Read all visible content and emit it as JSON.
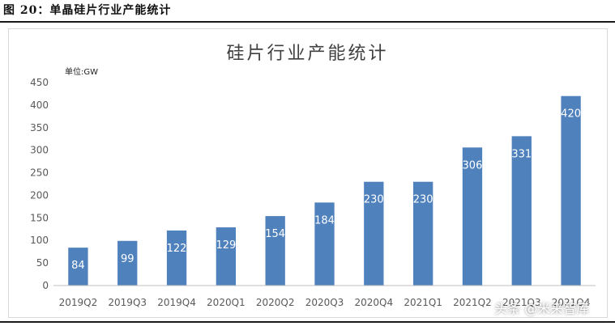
{
  "figure": {
    "label": "图 20：单晶硅片行业产能统计"
  },
  "watermark": "头条 @米来智库",
  "colors": {
    "bar": "#4f81bd",
    "axis": "#bfbfbf",
    "tick_text": "#595959",
    "bar_label": "#ffffff"
  },
  "chart_data": {
    "type": "bar",
    "title": "硅片行业产能统计",
    "unit_label": "单位:GW",
    "xlabel": "",
    "ylabel": "",
    "ylim": [
      0,
      450
    ],
    "yticks": [
      0,
      50,
      100,
      150,
      200,
      250,
      300,
      350,
      400,
      450
    ],
    "grid": false,
    "categories": [
      "2019Q2",
      "2019Q3",
      "2019Q4",
      "2020Q1",
      "2020Q2",
      "2020Q3",
      "2020Q4",
      "2021Q1",
      "2021Q2",
      "2021Q3",
      "2021Q4"
    ],
    "values": [
      84,
      99,
      122,
      129,
      154,
      184,
      230,
      230,
      306,
      331,
      420
    ],
    "data_labels": true
  }
}
